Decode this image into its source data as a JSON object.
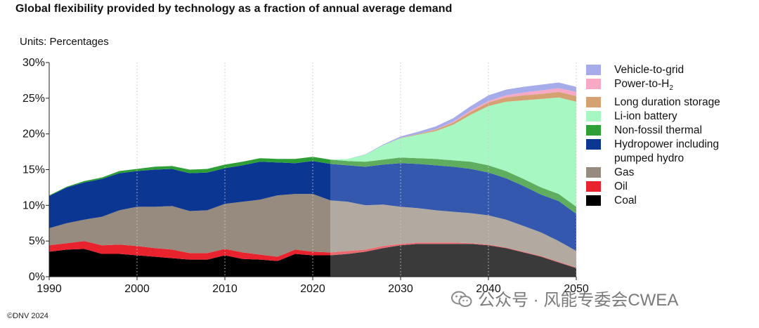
{
  "title": "Global flexibility provided by technology as a fraction of annual average demand",
  "units": "Units: Percentages",
  "copyright": "©DNV 2024",
  "watermark": "公众号 · 风能专委会CWEA",
  "chart_data": {
    "type": "area",
    "stacked": true,
    "xlim": [
      1990,
      2050
    ],
    "ylim": [
      0,
      30
    ],
    "x_ticks": [
      1990,
      2000,
      2010,
      2020,
      2030,
      2040,
      2050
    ],
    "x_tick_labels": [
      "1990",
      "2000",
      "2010",
      "2020",
      "2030",
      "2040",
      "2050"
    ],
    "y_ticks": [
      0,
      5,
      10,
      15,
      20,
      25,
      30
    ],
    "y_tick_labels": [
      "0%",
      "5%",
      "10%",
      "15%",
      "20%",
      "25%",
      "30%"
    ],
    "grid": "vertical dotted",
    "legend_position": "right",
    "forecast_start": 2022,
    "x": [
      1990,
      1992,
      1994,
      1996,
      1998,
      2000,
      2002,
      2004,
      2006,
      2008,
      2010,
      2012,
      2014,
      2016,
      2018,
      2020,
      2022,
      2024,
      2026,
      2028,
      2030,
      2032,
      2034,
      2036,
      2038,
      2040,
      2042,
      2044,
      2046,
      2048,
      2050
    ],
    "series": [
      {
        "name": "Coal",
        "color": "#000000",
        "forecast_color": "#3a3a3a",
        "values": [
          3.5,
          3.8,
          3.9,
          3.2,
          3.2,
          3.0,
          2.8,
          2.6,
          2.4,
          2.4,
          3.0,
          2.5,
          2.4,
          2.2,
          3.2,
          3.0,
          3.0,
          3.2,
          3.5,
          4.0,
          4.4,
          4.6,
          4.6,
          4.6,
          4.6,
          4.4,
          4.0,
          3.4,
          2.8,
          2.0,
          1.2
        ]
      },
      {
        "name": "Oil",
        "color": "#e8232d",
        "forecast_color": "#e96a6f",
        "values": [
          0.9,
          0.9,
          1.1,
          1.2,
          1.3,
          1.3,
          1.2,
          1.2,
          0.9,
          0.9,
          0.9,
          0.9,
          0.7,
          0.6,
          0.6,
          0.5,
          0.4,
          0.4,
          0.3,
          0.3,
          0.2,
          0.2,
          0.2,
          0.2,
          0.1,
          0.1,
          0.1,
          0.1,
          0.1,
          0.1,
          0.1
        ]
      },
      {
        "name": "Gas",
        "color": "#968b7e",
        "forecast_color": "#b2aaa0",
        "values": [
          2.4,
          2.8,
          3.0,
          4.0,
          4.8,
          5.5,
          5.8,
          6.1,
          5.9,
          6.0,
          6.3,
          7.1,
          7.7,
          8.6,
          7.8,
          8.1,
          7.3,
          6.9,
          6.2,
          5.8,
          5.2,
          4.8,
          4.5,
          4.3,
          4.2,
          4.1,
          3.9,
          3.6,
          3.3,
          2.9,
          2.3
        ]
      },
      {
        "name": "Hydropower including pumped hydro",
        "color": "#0b3792",
        "forecast_color": "#3358ad",
        "values": [
          4.5,
          5.0,
          5.2,
          5.3,
          5.2,
          5.0,
          5.2,
          5.2,
          5.3,
          5.3,
          5.0,
          5.1,
          5.3,
          4.6,
          4.3,
          4.6,
          5.1,
          5.1,
          5.4,
          5.6,
          6.1,
          6.2,
          6.3,
          6.3,
          6.2,
          6.0,
          5.8,
          5.6,
          5.3,
          5.6,
          5.2
        ]
      },
      {
        "name": "Non-fossil thermal",
        "color": "#2e9e36",
        "forecast_color": "#5fae5f",
        "values": [
          0.1,
          0.1,
          0.2,
          0.2,
          0.3,
          0.3,
          0.4,
          0.4,
          0.5,
          0.5,
          0.5,
          0.5,
          0.5,
          0.5,
          0.6,
          0.6,
          0.6,
          0.6,
          0.7,
          0.7,
          0.8,
          0.8,
          0.9,
          0.9,
          1.0,
          1.0,
          1.0,
          1.0,
          1.0,
          1.0,
          1.0
        ]
      },
      {
        "name": "Li-ion battery",
        "color": "#a7f7c2",
        "forecast_color": "#a7f7c2",
        "values": [
          0,
          0,
          0,
          0,
          0,
          0,
          0,
          0,
          0,
          0,
          0,
          0,
          0,
          0,
          0,
          0,
          0,
          0.3,
          1.0,
          2.0,
          2.7,
          3.3,
          3.9,
          5.0,
          6.6,
          8.3,
          9.7,
          11.0,
          12.4,
          13.5,
          14.7
        ]
      },
      {
        "name": "Long duration storage",
        "color": "#d4a272",
        "forecast_color": "#d4a272",
        "values": [
          0,
          0,
          0,
          0,
          0,
          0,
          0,
          0,
          0,
          0,
          0,
          0,
          0,
          0,
          0,
          0,
          0,
          0,
          0,
          0,
          0.05,
          0.1,
          0.2,
          0.3,
          0.4,
          0.5,
          0.6,
          0.7,
          0.7,
          0.8,
          0.8
        ]
      },
      {
        "name": "Power-to-H",
        "sub": "2",
        "color": "#f7a8c4",
        "forecast_color": "#f7a8c4",
        "values": [
          0,
          0,
          0,
          0,
          0,
          0,
          0,
          0,
          0,
          0,
          0,
          0,
          0,
          0,
          0,
          0,
          0,
          0,
          0,
          0,
          0,
          0,
          0.05,
          0.1,
          0.2,
          0.2,
          0.3,
          0.4,
          0.5,
          0.5,
          0.6
        ]
      },
      {
        "name": "Vehicle-to-grid",
        "color": "#a6acea",
        "forecast_color": "#a6acea",
        "values": [
          0,
          0,
          0,
          0,
          0,
          0,
          0,
          0,
          0,
          0,
          0,
          0,
          0,
          0,
          0,
          0,
          0,
          0,
          0.05,
          0.1,
          0.2,
          0.3,
          0.4,
          0.5,
          0.6,
          0.8,
          0.8,
          0.8,
          0.8,
          0.8,
          0.7
        ]
      }
    ]
  }
}
